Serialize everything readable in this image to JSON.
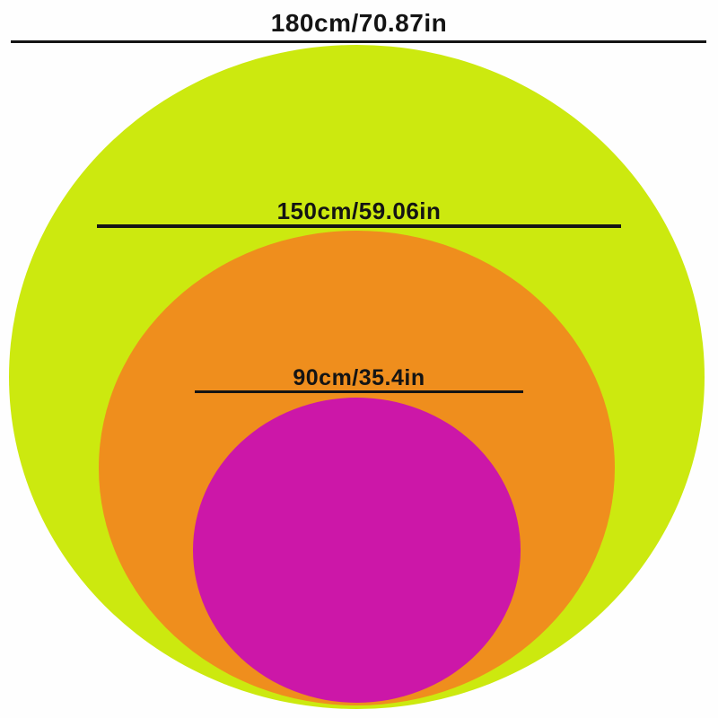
{
  "diagram": {
    "background": "#fefefe",
    "line_color": "#141414",
    "rings": [
      {
        "name": "outer",
        "label": "180cm/70.87in",
        "color": "#cce90f"
      },
      {
        "name": "middle",
        "label": "150cm/59.06in",
        "color": "#ef8e1d"
      },
      {
        "name": "inner",
        "label": "90cm/35.4in",
        "color": "#cc17a8"
      }
    ]
  },
  "chart_data": {
    "type": "nested-circles-size-comparison",
    "title": "",
    "series": [
      {
        "label": "180cm/70.87in",
        "diameter_cm": 180,
        "diameter_in": 70.87,
        "color": "#cce90f"
      },
      {
        "label": "150cm/59.06in",
        "diameter_cm": 150,
        "diameter_in": 59.06,
        "color": "#ef8e1d"
      },
      {
        "label": "90cm/35.4in",
        "diameter_cm": 90,
        "diameter_in": 35.4,
        "color": "#cc17a8"
      }
    ],
    "layout_hints": {
      "arrangement": "concentric horizontally, bottom-aligned ellipses",
      "labels_position": "centered above diameter line at top of each circle"
    }
  }
}
